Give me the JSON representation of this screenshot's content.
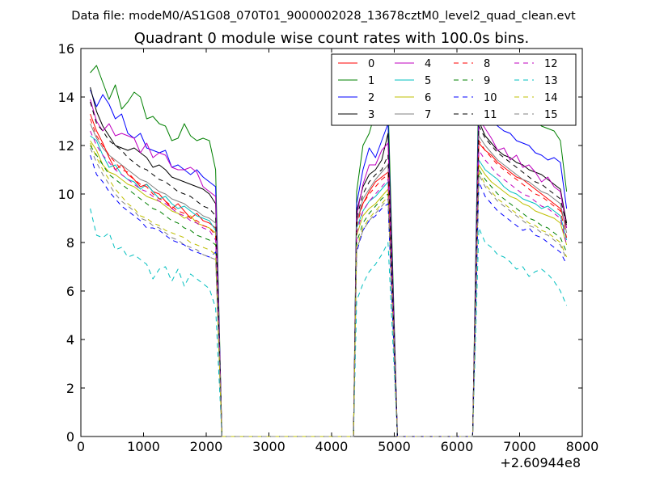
{
  "header": {
    "suptitle": "Data file: modeM0/AS1G08_070T01_9000002028_13678cztM0_level2_quad_clean.evt"
  },
  "chart_data": {
    "type": "line",
    "title": "Quadrant 0 module wise count rates with 100.0s bins.",
    "xlabel": "",
    "ylabel": "",
    "x_offset_label": "+2.60944e8",
    "xlim": [
      0,
      8000
    ],
    "ylim": [
      0,
      16
    ],
    "xticks": [
      0,
      1000,
      2000,
      3000,
      4000,
      5000,
      6000,
      7000,
      8000
    ],
    "yticks": [
      0,
      2,
      4,
      6,
      8,
      10,
      12,
      14,
      16
    ],
    "legend_position": "top-right",
    "legend_columns": 4,
    "segments": [
      {
        "x_start": 150,
        "x_end": 2150,
        "step": 100,
        "drop_x": 2250
      },
      {
        "x_start": 4400,
        "x_end": 4950,
        "step": 100,
        "rise_x": 4350,
        "drop_x": 5050
      },
      {
        "x_start": 6350,
        "x_end": 7750,
        "step": 100,
        "rise_x": 6250
      }
    ],
    "gap_value": 0,
    "series": [
      {
        "name": "0",
        "color": "#ff0000",
        "dash": "solid",
        "seg1": [
          13.3,
          12.6,
          12.1,
          11.5,
          11.0,
          11.2,
          10.8,
          10.6,
          10.3,
          10.4,
          10.1,
          10.0,
          9.7,
          9.4,
          9.6,
          9.3,
          9.0,
          9.2,
          8.9,
          8.8,
          8.6
        ],
        "seg2": [
          8.9,
          9.6,
          10.1,
          10.5,
          10.7,
          10.9
        ],
        "seg3": [
          12.1,
          11.8,
          11.6,
          11.3,
          11.1,
          10.9,
          10.7,
          10.6,
          10.4,
          10.2,
          10.0,
          9.8,
          9.6,
          9.4,
          8.6
        ]
      },
      {
        "name": "1",
        "color": "#008000",
        "dash": "solid",
        "seg1": [
          15.0,
          15.3,
          14.6,
          13.9,
          14.5,
          13.5,
          13.8,
          14.2,
          14.0,
          13.1,
          13.2,
          12.9,
          12.8,
          12.2,
          12.3,
          12.9,
          12.4,
          12.2,
          12.3,
          12.2,
          11.0
        ],
        "seg2": [
          10.1,
          12.0,
          12.5,
          13.4,
          13.3,
          13.8
        ],
        "seg3": [
          14.9,
          14.0,
          14.2,
          14.6,
          14.5,
          14.3,
          13.5,
          13.3,
          13.5,
          13.0,
          12.8,
          12.7,
          12.6,
          12.2,
          10.1
        ]
      },
      {
        "name": "2",
        "color": "#0000ff",
        "dash": "solid",
        "seg1": [
          14.3,
          13.6,
          14.1,
          13.7,
          13.1,
          13.3,
          12.5,
          12.3,
          12.5,
          11.9,
          11.8,
          11.7,
          11.8,
          11.1,
          11.2,
          11.0,
          10.8,
          11.0,
          10.7,
          10.5,
          10.3
        ],
        "seg2": [
          9.6,
          11.0,
          11.9,
          11.5,
          12.2,
          12.9
        ],
        "seg3": [
          13.9,
          13.3,
          13.0,
          12.8,
          12.6,
          12.5,
          12.2,
          12.1,
          12.0,
          11.7,
          11.6,
          11.4,
          11.5,
          11.3,
          9.4
        ]
      },
      {
        "name": "3",
        "color": "#000000",
        "dash": "solid",
        "seg1": [
          14.4,
          13.4,
          12.8,
          12.4,
          12.0,
          11.9,
          11.8,
          11.9,
          11.7,
          11.5,
          11.1,
          11.2,
          11.0,
          10.7,
          10.6,
          10.5,
          10.4,
          10.3,
          10.2,
          10.0,
          9.6
        ],
        "seg2": [
          9.3,
          10.3,
          10.8,
          11.0,
          11.4,
          12.5
        ],
        "seg3": [
          13.0,
          12.4,
          12.1,
          11.8,
          11.6,
          11.5,
          11.3,
          11.2,
          11.0,
          10.9,
          10.8,
          10.6,
          10.4,
          10.2,
          8.8
        ]
      },
      {
        "name": "4",
        "color": "#bf00bf",
        "dash": "solid",
        "seg1": [
          13.9,
          13.0,
          12.6,
          12.9,
          12.4,
          12.5,
          12.4,
          12.3,
          11.7,
          12.1,
          11.5,
          11.7,
          11.6,
          11.1,
          11.0,
          11.0,
          11.1,
          10.9,
          10.3,
          10.1,
          9.9
        ],
        "seg2": [
          9.1,
          10.4,
          11.2,
          11.2,
          11.8,
          12.1
        ],
        "seg3": [
          13.1,
          12.7,
          12.3,
          11.8,
          11.9,
          11.4,
          11.6,
          11.1,
          11.2,
          10.9,
          10.5,
          10.7,
          10.3,
          10.1,
          8.6
        ]
      },
      {
        "name": "5",
        "color": "#00bfbf",
        "dash": "solid",
        "seg1": [
          12.4,
          12.2,
          11.6,
          11.1,
          11.2,
          10.8,
          10.6,
          10.5,
          10.2,
          10.4,
          10.1,
          9.8,
          9.9,
          9.6,
          9.4,
          9.5,
          9.3,
          9.1,
          9.0,
          8.9,
          8.5
        ],
        "seg2": [
          8.6,
          9.3,
          9.7,
          9.9,
          10.2,
          10.5
        ],
        "seg3": [
          11.4,
          11.0,
          10.8,
          10.6,
          10.3,
          10.1,
          10.0,
          9.8,
          9.7,
          9.6,
          9.4,
          9.5,
          9.3,
          9.1,
          8.1
        ]
      },
      {
        "name": "6",
        "color": "#bfbf00",
        "dash": "solid",
        "seg1": [
          12.2,
          11.8,
          11.2,
          10.9,
          10.8,
          10.6,
          10.4,
          10.3,
          10.1,
          9.9,
          9.8,
          9.7,
          9.5,
          9.3,
          9.2,
          9.0,
          9.1,
          8.8,
          8.7,
          8.6,
          8.4
        ],
        "seg2": [
          8.3,
          9.1,
          9.4,
          9.6,
          9.9,
          10.2
        ],
        "seg3": [
          11.2,
          10.8,
          10.5,
          10.3,
          10.1,
          9.9,
          9.8,
          9.6,
          9.5,
          9.3,
          9.2,
          9.1,
          9.0,
          8.8,
          7.9
        ]
      },
      {
        "name": "7",
        "color": "#808080",
        "dash": "solid",
        "seg1": [
          12.9,
          12.3,
          11.9,
          11.6,
          11.4,
          11.2,
          11.0,
          10.8,
          10.6,
          10.5,
          10.3,
          10.1,
          10.0,
          9.8,
          9.7,
          9.6,
          9.4,
          9.3,
          9.1,
          9.0,
          8.8
        ],
        "seg2": [
          8.8,
          9.8,
          10.2,
          10.6,
          10.9,
          11.2
        ],
        "seg3": [
          12.4,
          12.0,
          11.7,
          11.4,
          11.2,
          11.0,
          10.8,
          10.6,
          10.5,
          10.3,
          10.1,
          10.0,
          9.8,
          9.6,
          8.4
        ]
      },
      {
        "name": "8",
        "color": "#ff0000",
        "dash": "dashed",
        "seg1": [
          13.1,
          12.4,
          12.0,
          11.6,
          11.3,
          11.0,
          10.9,
          10.6,
          10.4,
          10.3,
          10.0,
          9.8,
          9.7,
          9.5,
          9.3,
          9.2,
          9.0,
          8.9,
          8.7,
          8.6,
          8.3
        ],
        "seg2": [
          8.7,
          9.6,
          10.0,
          10.3,
          10.6,
          10.8
        ],
        "seg3": [
          12.2,
          11.8,
          11.5,
          11.2,
          11.0,
          10.8,
          10.6,
          10.4,
          10.2,
          10.0,
          9.9,
          9.7,
          9.5,
          9.3,
          8.2
        ]
      },
      {
        "name": "9",
        "color": "#008000",
        "dash": "dashed",
        "seg1": [
          12.0,
          11.6,
          11.2,
          10.8,
          10.6,
          10.4,
          10.2,
          10.0,
          9.8,
          9.6,
          9.4,
          9.3,
          9.1,
          8.9,
          8.8,
          8.6,
          8.5,
          8.3,
          8.2,
          8.1,
          7.9
        ],
        "seg2": [
          8.0,
          8.8,
          9.2,
          9.5,
          9.8,
          10.0
        ],
        "seg3": [
          11.0,
          10.6,
          10.3,
          10.0,
          9.8,
          9.6,
          9.4,
          9.2,
          9.0,
          8.9,
          8.7,
          8.6,
          8.4,
          8.2,
          7.6
        ]
      },
      {
        "name": "10",
        "color": "#0000ff",
        "dash": "dashed",
        "seg1": [
          11.6,
          10.8,
          10.5,
          10.1,
          9.8,
          9.5,
          9.3,
          9.1,
          8.9,
          8.6,
          8.6,
          8.5,
          8.3,
          8.1,
          8.0,
          7.9,
          7.7,
          7.6,
          7.5,
          7.4,
          7.6
        ],
        "seg2": [
          7.6,
          8.5,
          8.9,
          9.1,
          9.4,
          9.6
        ],
        "seg3": [
          10.5,
          9.9,
          9.6,
          9.3,
          9.1,
          8.9,
          8.7,
          8.5,
          8.6,
          8.3,
          8.2,
          8.0,
          7.8,
          7.6,
          7.1
        ]
      },
      {
        "name": "11",
        "color": "#000000",
        "dash": "dashed",
        "seg1": [
          13.8,
          12.9,
          12.6,
          12.2,
          12.0,
          11.8,
          11.5,
          11.3,
          11.1,
          11.0,
          10.8,
          10.6,
          10.5,
          10.3,
          10.1,
          10.0,
          9.9,
          9.7,
          9.5,
          9.4,
          9.1
        ],
        "seg2": [
          9.0,
          10.0,
          10.5,
          10.8,
          11.0,
          11.6
        ],
        "seg3": [
          12.8,
          12.3,
          12.0,
          11.7,
          11.5,
          11.3,
          11.1,
          10.9,
          10.7,
          10.5,
          10.4,
          10.2,
          10.0,
          9.8,
          8.7
        ]
      },
      {
        "name": "12",
        "color": "#bf00bf",
        "dash": "dashed",
        "seg1": [
          12.6,
          12.0,
          11.6,
          11.3,
          11.0,
          10.8,
          10.6,
          10.4,
          10.2,
          10.1,
          9.9,
          9.7,
          9.6,
          9.4,
          9.2,
          9.1,
          8.9,
          8.8,
          8.6,
          8.5,
          8.1
        ],
        "seg2": [
          8.4,
          9.3,
          9.7,
          10.0,
          10.3,
          10.6
        ],
        "seg3": [
          11.8,
          11.4,
          11.1,
          10.8,
          10.6,
          10.4,
          10.2,
          10.0,
          9.9,
          9.7,
          9.5,
          9.4,
          9.2,
          9.0,
          7.9
        ]
      },
      {
        "name": "13",
        "color": "#00bfbf",
        "dash": "dashed",
        "seg1": [
          9.4,
          8.3,
          8.2,
          8.4,
          7.7,
          7.8,
          7.4,
          7.5,
          7.3,
          7.1,
          6.5,
          6.9,
          7.0,
          6.4,
          6.9,
          6.2,
          6.7,
          6.5,
          6.3,
          6.1,
          5.3
        ],
        "seg2": [
          5.6,
          6.3,
          6.8,
          7.1,
          7.5,
          8.0
        ],
        "seg3": [
          8.6,
          8.0,
          7.8,
          7.5,
          7.4,
          7.2,
          6.9,
          7.0,
          6.6,
          6.8,
          6.9,
          6.7,
          6.4,
          6.0,
          5.4
        ]
      },
      {
        "name": "14",
        "color": "#bfbf00",
        "dash": "dashed",
        "seg1": [
          12.1,
          11.5,
          11.0,
          10.6,
          10.2,
          9.9,
          9.6,
          9.4,
          9.1,
          9.0,
          8.8,
          8.7,
          8.5,
          8.4,
          8.3,
          8.2,
          8.0,
          7.9,
          7.8,
          7.7,
          7.5
        ],
        "seg2": [
          7.8,
          8.6,
          9.0,
          9.3,
          9.6,
          9.9
        ],
        "seg3": [
          10.9,
          10.4,
          10.1,
          9.8,
          9.6,
          9.4,
          9.2,
          9.0,
          8.8,
          8.7,
          8.5,
          8.4,
          8.2,
          8.0,
          7.4
        ]
      },
      {
        "name": "15",
        "color": "#808080",
        "dash": "dashed",
        "seg1": [
          11.9,
          11.3,
          10.8,
          10.4,
          10.0,
          9.7,
          9.5,
          9.3,
          9.0,
          8.9,
          8.7,
          8.6,
          8.4,
          8.2,
          8.1,
          7.9,
          7.8,
          7.7,
          7.5,
          7.4,
          7.3
        ],
        "seg2": [
          7.7,
          8.5,
          8.9,
          9.2,
          9.5,
          9.8
        ],
        "seg3": [
          10.8,
          10.3,
          10.0,
          9.7,
          9.5,
          9.3,
          9.1,
          8.9,
          8.7,
          8.6,
          8.4,
          8.3,
          8.1,
          7.9,
          7.3
        ]
      }
    ]
  }
}
